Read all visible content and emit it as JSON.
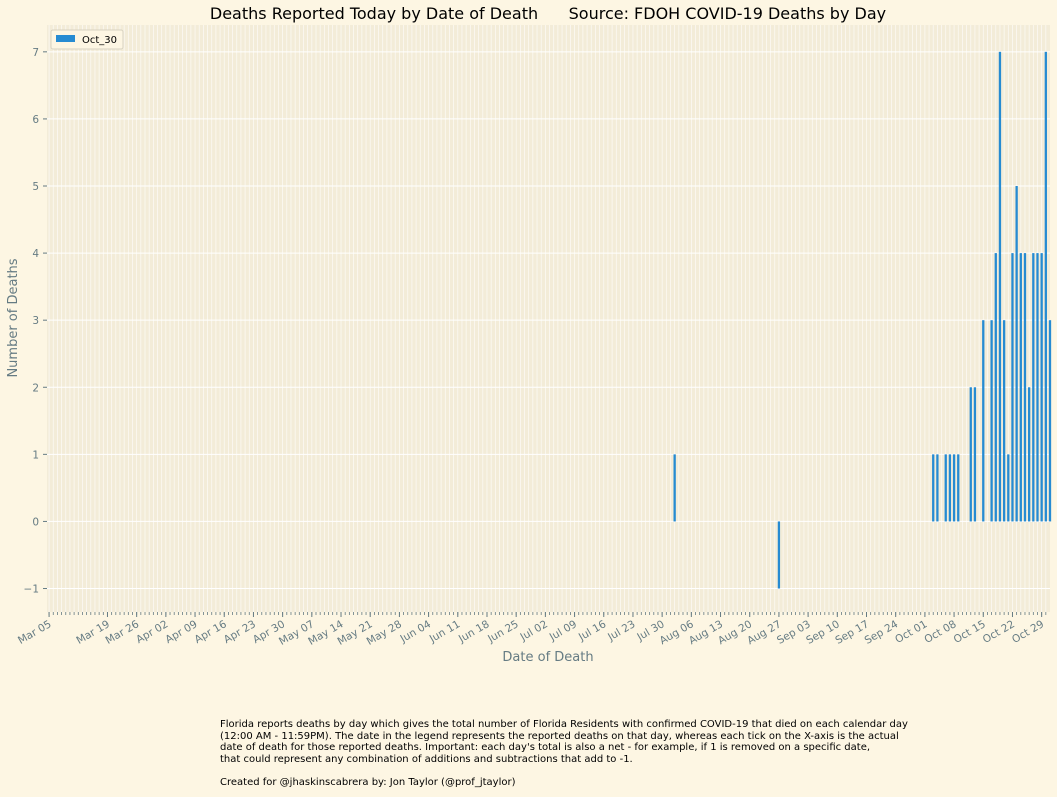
{
  "chart_data": {
    "type": "bar",
    "title": "Deaths Reported Today by Date of Death      Source: FDOH COVID-19 Deaths by Day",
    "xlabel": "Date of Death",
    "ylabel": "Number of Deaths",
    "ylim": [
      -1.35,
      7.4
    ],
    "yticks": [
      -1,
      0,
      1,
      2,
      3,
      4,
      5,
      6,
      7
    ],
    "x_start": "2020-03-05",
    "x_end": "2020-10-30",
    "xtick_labels": [
      "Mar 05",
      "Mar 19",
      "Mar 26",
      "Apr 02",
      "Apr 09",
      "Apr 16",
      "Apr 23",
      "Apr 30",
      "May 07",
      "May 14",
      "May 21",
      "May 28",
      "Jun 04",
      "Jun 11",
      "Jun 18",
      "Jun 25",
      "Jul 02",
      "Jul 09",
      "Jul 16",
      "Jul 23",
      "Jul 30",
      "Aug 06",
      "Aug 13",
      "Aug 20",
      "Aug 27",
      "Sep 03",
      "Sep 10",
      "Sep 17",
      "Sep 24",
      "Oct 01",
      "Oct 08",
      "Oct 15",
      "Oct 22",
      "Oct 29"
    ],
    "grid": true,
    "legend_position": "top-left",
    "series": [
      {
        "name": "Oct_30",
        "color": "#268bd2",
        "points": [
          {
            "x": "2020-08-02",
            "y": 1
          },
          {
            "x": "2020-08-27",
            "y": -1
          },
          {
            "x": "2020-10-03",
            "y": 1
          },
          {
            "x": "2020-10-04",
            "y": 1
          },
          {
            "x": "2020-10-06",
            "y": 1
          },
          {
            "x": "2020-10-07",
            "y": 1
          },
          {
            "x": "2020-10-08",
            "y": 1
          },
          {
            "x": "2020-10-09",
            "y": 1
          },
          {
            "x": "2020-10-12",
            "y": 2
          },
          {
            "x": "2020-10-13",
            "y": 2
          },
          {
            "x": "2020-10-15",
            "y": 3
          },
          {
            "x": "2020-10-17",
            "y": 3
          },
          {
            "x": "2020-10-18",
            "y": 4
          },
          {
            "x": "2020-10-19",
            "y": 7
          },
          {
            "x": "2020-10-20",
            "y": 3
          },
          {
            "x": "2020-10-21",
            "y": 1
          },
          {
            "x": "2020-10-22",
            "y": 4
          },
          {
            "x": "2020-10-23",
            "y": 5
          },
          {
            "x": "2020-10-24",
            "y": 4
          },
          {
            "x": "2020-10-25",
            "y": 4
          },
          {
            "x": "2020-10-26",
            "y": 2
          },
          {
            "x": "2020-10-27",
            "y": 4
          },
          {
            "x": "2020-10-28",
            "y": 4
          },
          {
            "x": "2020-10-29",
            "y": 4
          },
          {
            "x": "2020-10-30",
            "y": 7
          },
          {
            "x": "2020-10-31",
            "y": 3
          }
        ]
      }
    ]
  },
  "caption": {
    "text": "Florida reports deaths by day which gives the total number of Florida Residents with confirmed COVID-19 that died on each calendar day\n(12:00 AM - 11:59PM). The date in the legend represents the reported deaths on that day, whereas each tick on the X-axis is the actual\ndate of death for those reported deaths. Important: each day's total is also a net - for example, if 1 is removed on a specific date,\nthat could represent any combination of additions and subtractions that add to -1.",
    "credit": "Created for @jhaskinscabrera by: Jon Taylor (@prof_jtaylor)"
  },
  "colors": {
    "background": "#fdf6e3",
    "plot_background": "#f3ecd8",
    "grid": "#ffffff",
    "text": "#657b83",
    "bar": "#268bd2"
  }
}
